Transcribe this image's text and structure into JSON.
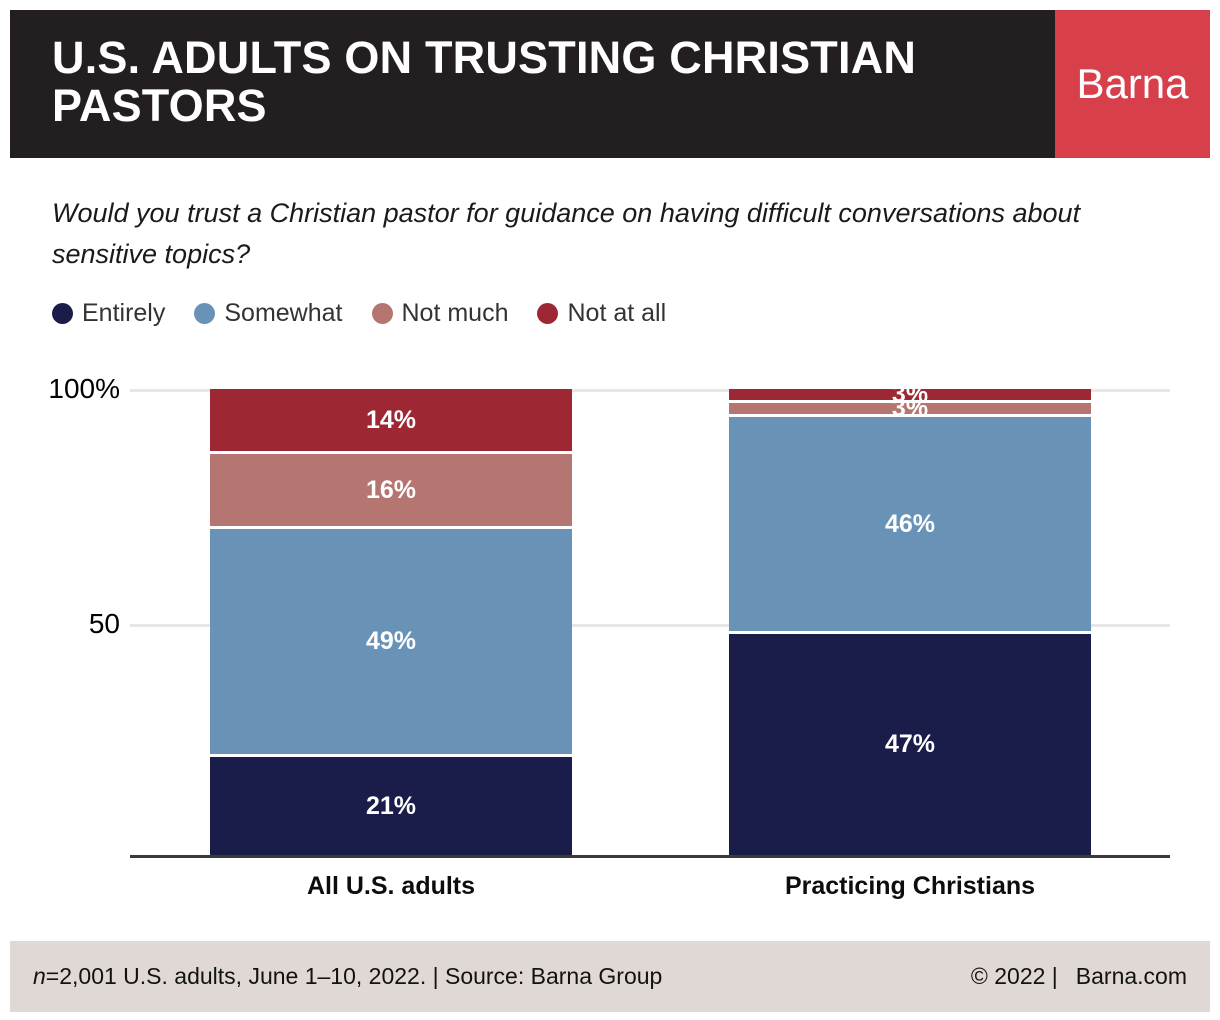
{
  "header": {
    "title": "U.S. ADULTS ON TRUSTING CHRISTIAN PASTORS",
    "brand": "Barna",
    "bg_color": "#231f20",
    "brand_color": "#d7404b"
  },
  "question": "Would you trust a Christian pastor for guidance on having difficult conversations about sensitive topics?",
  "legend": [
    {
      "label": "Entirely",
      "color": "#1a1c4a"
    },
    {
      "label": "Somewhat",
      "color": "#6893b7"
    },
    {
      "label": "Not much",
      "color": "#b57672"
    },
    {
      "label": "Not at all",
      "color": "#9d2733"
    }
  ],
  "chart_data": {
    "type": "bar",
    "stacked": true,
    "title": "U.S. ADULTS ON TRUSTING CHRISTIAN PASTORS",
    "subtitle": "Would you trust a Christian pastor for guidance on having difficult conversations about sensitive topics?",
    "categories": [
      "All U.S. adults",
      "Practicing Christians"
    ],
    "series": [
      {
        "name": "Entirely",
        "color": "#1a1c4a",
        "values": [
          21,
          47
        ]
      },
      {
        "name": "Somewhat",
        "color": "#6893b7",
        "values": [
          49,
          46
        ]
      },
      {
        "name": "Not much",
        "color": "#b57672",
        "values": [
          16,
          3
        ]
      },
      {
        "name": "Not at all",
        "color": "#9d2733",
        "values": [
          14,
          3
        ]
      }
    ],
    "value_suffix": "%",
    "ylim": [
      0,
      100
    ],
    "y_ticks": [
      {
        "label": "100%",
        "value": 100
      },
      {
        "label": "50",
        "value": 50
      }
    ],
    "grid": true,
    "gridline_color": "#e7e7e7",
    "axis_color": "#3a3a3a",
    "legend_position": "top"
  },
  "footer": {
    "note_italic": "n",
    "note_rest": "=2,001 U.S. adults, June 1–10, 2022. | Source: Barna Group",
    "copyright": "© 2022 |",
    "site": "Barna.com"
  }
}
